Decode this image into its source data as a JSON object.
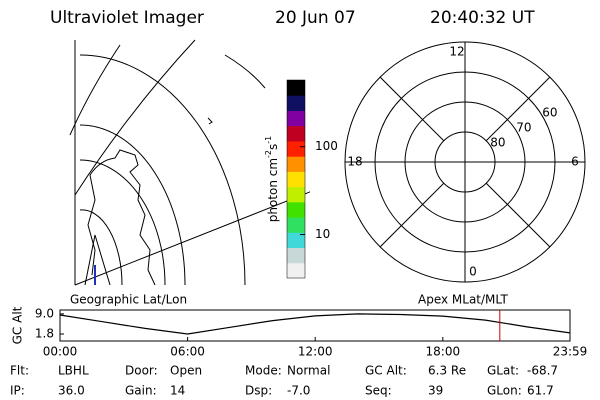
{
  "header": {
    "title": "Ultraviolet Imager",
    "date": "20 Jun 07",
    "time": "20:40:32 UT"
  },
  "map": {
    "title": "Geographic Lat/Lon"
  },
  "chart_data": [
    {
      "type": "line",
      "ylabel": "GC Alt",
      "x": [
        0,
        2,
        4,
        6,
        8,
        10,
        12,
        14,
        16,
        18,
        20,
        22,
        23.98
      ],
      "values": [
        8.6,
        6.2,
        3.8,
        1.8,
        4.2,
        6.6,
        8.3,
        9.0,
        8.8,
        8.2,
        6.8,
        4.3,
        2.2
      ],
      "color": "#000000",
      "xlim": [
        0,
        23.98
      ],
      "xticks": [
        {
          "value": 0,
          "label": "00:00"
        },
        {
          "value": 6,
          "label": "06:00"
        },
        {
          "value": 12,
          "label": "12:00"
        },
        {
          "value": 18,
          "label": "18:00"
        },
        {
          "value": 23.98,
          "label": "23:59"
        }
      ],
      "ylim": [
        -0.7,
        10.4
      ],
      "yticks": [
        {
          "value": 9,
          "label": "9.0"
        },
        {
          "value": 1.8,
          "label": "1.8"
        }
      ],
      "marker_x": 20.68,
      "marker_color": "#d00000"
    },
    {
      "type": "polar",
      "title": "Apex MLat/MLT",
      "rlim": [
        50,
        90
      ],
      "rticks": [
        60,
        70,
        80
      ],
      "thetaticks": [
        12,
        6,
        0,
        18
      ]
    },
    {
      "type": "colorbar",
      "label_parts": [
        "photon cm",
        "-2",
        "s",
        "-1"
      ],
      "scale": "log",
      "ylim": [
        3.2,
        575
      ],
      "yticks": [
        10,
        100
      ],
      "colors": [
        "#f0f0f0",
        "#c8d8d8",
        "#40d8d8",
        "#30e060",
        "#40e000",
        "#c0f000",
        "#ffe000",
        "#ff9000",
        "#ff2000",
        "#c00020",
        "#8000a0",
        "#101060",
        "#000000"
      ]
    }
  ],
  "footer": [
    [
      {
        "label": "Flt:",
        "value": "LBHL"
      },
      {
        "label": "Door:",
        "value": "Open"
      },
      {
        "label": "Mode:",
        "value": "Normal"
      },
      {
        "label": "GC Alt:",
        "value": "6.3 Re"
      },
      {
        "label": "GLat:",
        "value": "-68.7"
      }
    ],
    [
      {
        "label": "IP:",
        "value": "36.0"
      },
      {
        "label": "Gain:",
        "value": "14"
      },
      {
        "label": "Dsp:",
        "value": "-7.0"
      },
      {
        "label": "Seq:",
        "value": "39"
      },
      {
        "label": "GLon:",
        "value": "61.7"
      }
    ]
  ]
}
